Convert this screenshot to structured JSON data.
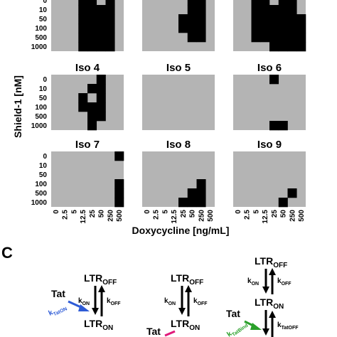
{
  "heatmap": {
    "rows": [
      "0",
      "10",
      "50",
      "100",
      "500",
      "1000"
    ],
    "cols": [
      "0",
      "2.5",
      "5",
      "12.5",
      "25",
      "50",
      "250",
      "500"
    ],
    "ylabel": "Shield-1 [nM]",
    "xlabel": "Doxycycline [ng/mL]",
    "off_color": "#b4b4b4",
    "on_color": "#000000",
    "panels": [
      {
        "title": "",
        "grid": [
          [
            0,
            0,
            0,
            1,
            1,
            0,
            1,
            0
          ],
          [
            0,
            0,
            0,
            1,
            1,
            1,
            1,
            0
          ],
          [
            0,
            0,
            0,
            1,
            1,
            1,
            1,
            0
          ],
          [
            0,
            0,
            0,
            1,
            1,
            1,
            1,
            0
          ],
          [
            0,
            0,
            0,
            1,
            1,
            1,
            1,
            0
          ],
          [
            0,
            0,
            0,
            1,
            1,
            1,
            1,
            0
          ]
        ]
      },
      {
        "title": "",
        "grid": [
          [
            0,
            0,
            0,
            0,
            0,
            1,
            1,
            0
          ],
          [
            0,
            0,
            0,
            0,
            0,
            1,
            1,
            0
          ],
          [
            0,
            0,
            0,
            0,
            1,
            1,
            1,
            0
          ],
          [
            0,
            0,
            0,
            0,
            1,
            1,
            1,
            0
          ],
          [
            0,
            0,
            0,
            0,
            0,
            1,
            1,
            0
          ],
          [
            0,
            0,
            0,
            0,
            0,
            0,
            0,
            0
          ]
        ]
      },
      {
        "title": "",
        "grid": [
          [
            0,
            0,
            1,
            1,
            0,
            1,
            1,
            0
          ],
          [
            0,
            0,
            1,
            1,
            1,
            1,
            1,
            0
          ],
          [
            0,
            0,
            1,
            1,
            1,
            1,
            1,
            1
          ],
          [
            0,
            0,
            1,
            1,
            1,
            1,
            1,
            1
          ],
          [
            0,
            0,
            1,
            1,
            1,
            1,
            1,
            1
          ],
          [
            0,
            0,
            0,
            0,
            1,
            1,
            1,
            1
          ]
        ]
      },
      {
        "title": "Iso 4",
        "grid": [
          [
            0,
            0,
            0,
            0,
            0,
            1,
            0,
            0
          ],
          [
            0,
            0,
            0,
            0,
            1,
            1,
            0,
            0
          ],
          [
            0,
            0,
            0,
            1,
            0,
            1,
            0,
            0
          ],
          [
            0,
            0,
            0,
            1,
            1,
            1,
            0,
            0
          ],
          [
            0,
            0,
            0,
            0,
            1,
            1,
            0,
            0
          ],
          [
            0,
            0,
            0,
            0,
            1,
            0,
            0,
            0
          ]
        ]
      },
      {
        "title": "Iso 5",
        "grid": [
          [
            0,
            0,
            0,
            0,
            0,
            0,
            0,
            0
          ],
          [
            0,
            0,
            0,
            0,
            0,
            0,
            0,
            0
          ],
          [
            0,
            0,
            0,
            0,
            0,
            0,
            0,
            0
          ],
          [
            0,
            0,
            0,
            0,
            0,
            0,
            0,
            0
          ],
          [
            0,
            0,
            0,
            0,
            0,
            0,
            0,
            0
          ],
          [
            0,
            0,
            0,
            0,
            0,
            0,
            0,
            0
          ]
        ]
      },
      {
        "title": "Iso 6",
        "grid": [
          [
            0,
            0,
            0,
            0,
            1,
            0,
            0,
            0
          ],
          [
            0,
            0,
            0,
            0,
            0,
            0,
            0,
            0
          ],
          [
            0,
            0,
            0,
            0,
            0,
            0,
            0,
            0
          ],
          [
            0,
            0,
            0,
            0,
            0,
            0,
            0,
            0
          ],
          [
            0,
            0,
            0,
            0,
            0,
            0,
            0,
            0
          ],
          [
            0,
            0,
            0,
            0,
            1,
            1,
            0,
            0
          ]
        ]
      },
      {
        "title": "Iso 7",
        "grid": [
          [
            0,
            0,
            0,
            0,
            0,
            0,
            0,
            1
          ],
          [
            0,
            0,
            0,
            0,
            0,
            0,
            0,
            0
          ],
          [
            0,
            0,
            0,
            0,
            0,
            0,
            0,
            0
          ],
          [
            0,
            0,
            0,
            0,
            0,
            0,
            0,
            1
          ],
          [
            0,
            0,
            0,
            0,
            0,
            0,
            0,
            1
          ],
          [
            0,
            0,
            0,
            0,
            0,
            0,
            0,
            1
          ]
        ]
      },
      {
        "title": "Iso 8",
        "grid": [
          [
            0,
            0,
            0,
            0,
            0,
            0,
            0,
            0
          ],
          [
            0,
            0,
            0,
            0,
            0,
            0,
            0,
            0
          ],
          [
            0,
            0,
            0,
            0,
            0,
            0,
            0,
            0
          ],
          [
            0,
            0,
            0,
            0,
            0,
            0,
            1,
            0
          ],
          [
            0,
            0,
            0,
            0,
            0,
            1,
            1,
            0
          ],
          [
            0,
            0,
            0,
            0,
            1,
            1,
            1,
            0
          ]
        ]
      },
      {
        "title": "Iso 9",
        "grid": [
          [
            0,
            0,
            0,
            0,
            0,
            0,
            0,
            0
          ],
          [
            0,
            0,
            0,
            0,
            0,
            0,
            0,
            0
          ],
          [
            0,
            0,
            0,
            0,
            0,
            0,
            0,
            0
          ],
          [
            0,
            0,
            0,
            0,
            0,
            0,
            0,
            0
          ],
          [
            0,
            0,
            0,
            0,
            0,
            0,
            1,
            0
          ],
          [
            0,
            0,
            0,
            0,
            0,
            1,
            0,
            0
          ]
        ]
      }
    ]
  },
  "panel_c": {
    "label": "C",
    "schemes": [
      {
        "top": "LTR",
        "top_sub": "OFF",
        "bottom": "LTR",
        "bottom_sub": "ON",
        "k_on": "k",
        "k_on_sub": "ON",
        "k_off": "k",
        "k_off_sub": "OFF",
        "tat": "Tat",
        "tat_rate": "k",
        "tat_rate_sub": "TatON",
        "tat_color": "#2e5bd6"
      },
      {
        "top": "LTR",
        "top_sub": "OFF",
        "bottom": "LTR",
        "bottom_sub": "ON",
        "k_on": "k",
        "k_on_sub": "ON",
        "k_off": "k",
        "k_off_sub": "OFF",
        "tat": "Tat",
        "tat_color": "#e0197a"
      },
      {
        "top": "LTR",
        "top_sub": "OFF",
        "bottom": "LTR",
        "bottom_sub": "ON",
        "k_on": "k",
        "k_on_sub": "ON",
        "k_off": "k",
        "k_off_sub": "OFF",
        "tat": "Tat",
        "tat_rate": "k",
        "tat_rate_sub": "TatBind",
        "tat_color": "#2aa02a",
        "tat_off": "k",
        "tat_off_sub": "TatOFF"
      }
    ]
  }
}
